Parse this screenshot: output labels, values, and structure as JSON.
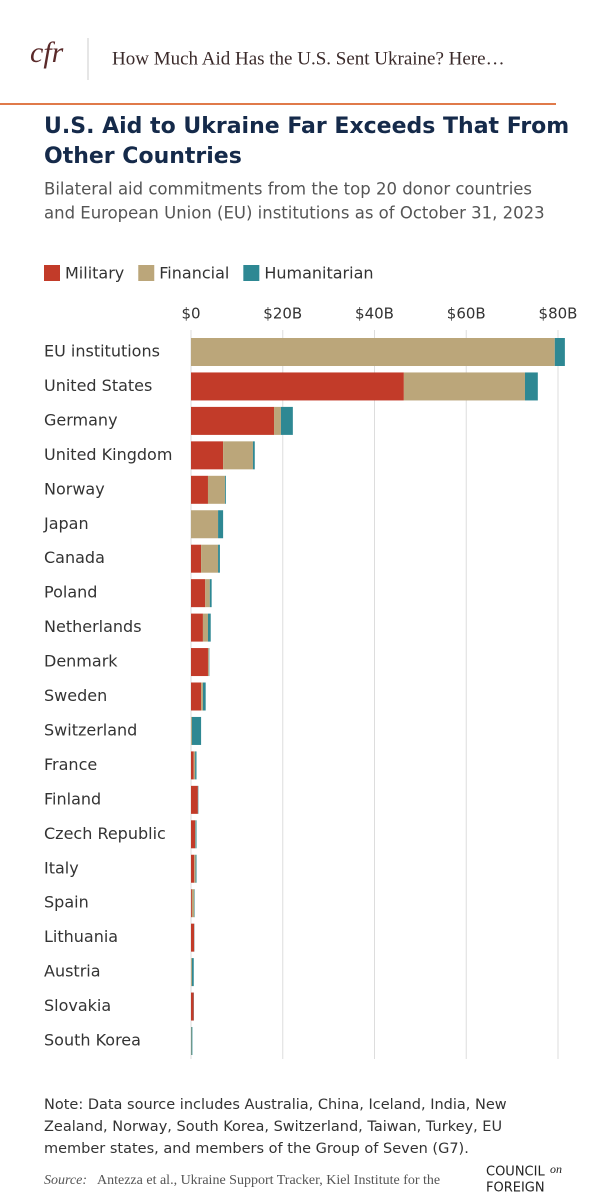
{
  "header": {
    "logo": "cfr",
    "title": "How Much Aid Has the U.S. Sent Ukraine? Here…"
  },
  "chart_data": {
    "type": "bar",
    "orientation": "horizontal",
    "stacked": true,
    "title_lines": [
      "U.S. Aid to Ukraine Far Exceeds That From",
      "Other Countries"
    ],
    "subtitle_lines": [
      "Bilateral aid commitments from the top 20 donor countries",
      "and European Union (EU) institutions as of October 31, 2023"
    ],
    "categories": [
      "EU institutions",
      "United States",
      "Germany",
      "United Kingdom",
      "Norway",
      "Japan",
      "Canada",
      "Poland",
      "Netherlands",
      "Denmark",
      "Sweden",
      "Switzerland",
      "France",
      "Finland",
      "Czech Republic",
      "Italy",
      "Spain",
      "Lithuania",
      "Austria",
      "Slovakia",
      "South Korea"
    ],
    "series": [
      {
        "name": "Military",
        "color": "#c23b29",
        "values": [
          0,
          46.4,
          18.1,
          7.0,
          3.7,
          0,
          2.2,
          3.1,
          2.6,
          3.7,
          2.2,
          0,
          0.6,
          1.5,
          0.9,
          0.7,
          0.2,
          0.7,
          0,
          0.6,
          0
        ]
      },
      {
        "name": "Financial",
        "color": "#bba67a",
        "values": [
          79.3,
          26.4,
          1.5,
          6.5,
          3.7,
          5.9,
          3.7,
          1.0,
          1.1,
          0.2,
          0.4,
          0.2,
          0.3,
          0,
          0.1,
          0.3,
          0.5,
          0,
          0.2,
          0,
          0.1
        ]
      },
      {
        "name": "Humanitarian",
        "color": "#2e8893",
        "values": [
          2.2,
          2.8,
          2.6,
          0.4,
          0.2,
          1.1,
          0.4,
          0.4,
          0.6,
          0.1,
          0.6,
          2.0,
          0.3,
          0.1,
          0.2,
          0.2,
          0.1,
          0.05,
          0.4,
          0.05,
          0.2
        ]
      }
    ],
    "xlim": [
      0,
      85
    ],
    "xticks": [
      {
        "value": 0,
        "label": "$0"
      },
      {
        "value": 20,
        "label": "$20B"
      },
      {
        "value": 40,
        "label": "$40B"
      },
      {
        "value": 60,
        "label": "$60B"
      },
      {
        "value": 80,
        "label": "$80B"
      }
    ],
    "grid": true,
    "legend": "top-left"
  },
  "footer": {
    "note_lines": [
      "Note: Data source includes Australia, China, Iceland, India, New",
      "Zealand, Norway, South Korea, Switzerland, Taiwan, Turkey, EU",
      "member states, and members of the Group of Seven (G7)."
    ],
    "source_label": "Source:",
    "source_text": "Antezza et al., Ukraine Support Tracker, Kiel Institute for the",
    "brand": [
      "COUNCIL",
      "on",
      "FOREIGN"
    ]
  }
}
